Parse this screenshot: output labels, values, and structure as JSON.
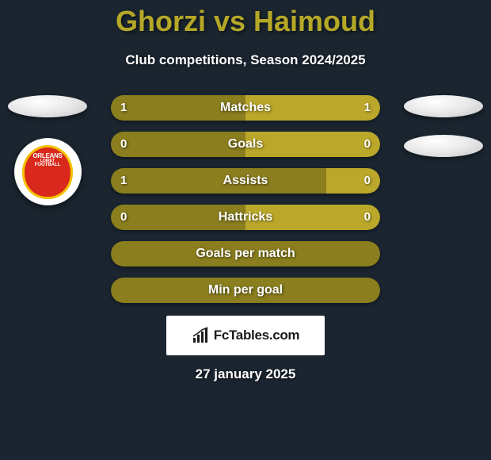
{
  "title": "Ghorzi vs Haimoud",
  "subtitle": "Club competitions, Season 2024/2025",
  "colors": {
    "bar_dark": "#8a7e1e",
    "bar_light": "#bba82b",
    "title_color": "#b5a827",
    "bg": "#1a2530"
  },
  "club_badge": {
    "line1": "ORLEANS",
    "line2": "LOIRET",
    "line3": "FOOTBALL",
    "outer_color": "#d9291c",
    "ring_color": "#f2c200"
  },
  "stats": [
    {
      "label": "Matches",
      "left_val": "1",
      "right_val": "1",
      "left_pct": 50,
      "right_pct": 50
    },
    {
      "label": "Goals",
      "left_val": "0",
      "right_val": "0",
      "left_pct": 50,
      "right_pct": 50
    },
    {
      "label": "Assists",
      "left_val": "1",
      "right_val": "0",
      "left_pct": 80,
      "right_pct": 20
    },
    {
      "label": "Hattricks",
      "left_val": "0",
      "right_val": "0",
      "left_pct": 50,
      "right_pct": 50
    },
    {
      "label": "Goals per match",
      "left_val": "",
      "right_val": "",
      "left_pct": 100,
      "right_pct": 0
    },
    {
      "label": "Min per goal",
      "left_val": "",
      "right_val": "",
      "left_pct": 100,
      "right_pct": 0
    }
  ],
  "attribution": "FcTables.com",
  "date": "27 january 2025"
}
